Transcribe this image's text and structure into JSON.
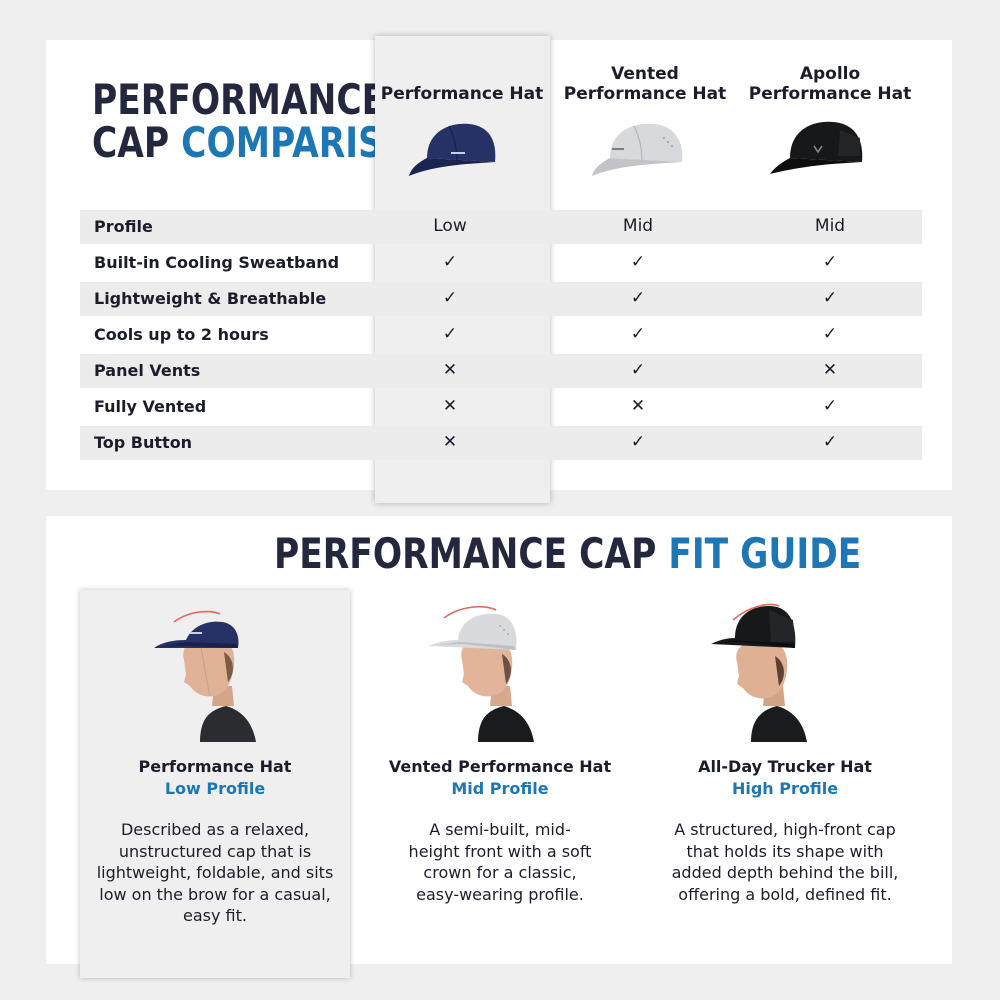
{
  "comparison": {
    "title_line1": "PERFORMANCE",
    "title_line2_plain": "CAP",
    "title_line2_accent": "COMPARISON",
    "columns": [
      {
        "name": "Performance Hat",
        "cap_color": "navy"
      },
      {
        "name": "Vented Performance Hat",
        "cap_color": "light-gray"
      },
      {
        "name": "Apollo Performance Hat",
        "cap_color": "black"
      }
    ],
    "columns_lines": [
      [
        "Performance Hat"
      ],
      [
        "Vented",
        "Performance Hat"
      ],
      [
        "Apollo",
        "Performance Hat"
      ]
    ],
    "rows": [
      {
        "label": "Profile",
        "values": [
          "Low",
          "Mid",
          "Mid"
        ]
      },
      {
        "label": "Built-in Cooling Sweatband",
        "values": [
          "✓",
          "✓",
          "✓"
        ]
      },
      {
        "label": "Lightweight & Breathable",
        "values": [
          "✓",
          "✓",
          "✓"
        ]
      },
      {
        "label": "Cools up to 2 hours",
        "values": [
          "✓",
          "✓",
          "✓"
        ]
      },
      {
        "label": "Panel Vents",
        "values": [
          "✕",
          "✓",
          "✕"
        ]
      },
      {
        "label": "Fully Vented",
        "values": [
          "✕",
          "✕",
          "✓"
        ]
      },
      {
        "label": "Top Button",
        "values": [
          "✕",
          "✓",
          "✓"
        ]
      }
    ]
  },
  "fit_guide": {
    "title_plain": "PERFORMANCE CAP",
    "title_accent": "FIT GUIDE",
    "cards": [
      {
        "name": "Performance Hat",
        "profile": "Low Profile",
        "description": "Described as a relaxed, unstructured cap that is lightweight, foldable, and sits low on the brow for a casual, easy fit."
      },
      {
        "name": "Vented Performance Hat",
        "profile": "Mid Profile",
        "description": "A semi-built, mid-height front with a soft crown for a classic, easy-wearing profile."
      },
      {
        "name": "All-Day Trucker Hat",
        "profile": "High Profile",
        "description": "A structured, high-front cap that holds its shape with added depth behind the bill, offering a bold, defined fit."
      }
    ]
  },
  "colors": {
    "navy_title": "#23283f",
    "accent_blue": "#1d77b5",
    "check": "#1d77b5",
    "cross": "#d62a2a",
    "row_shade": "#ececec",
    "highlight": "#efefef"
  }
}
